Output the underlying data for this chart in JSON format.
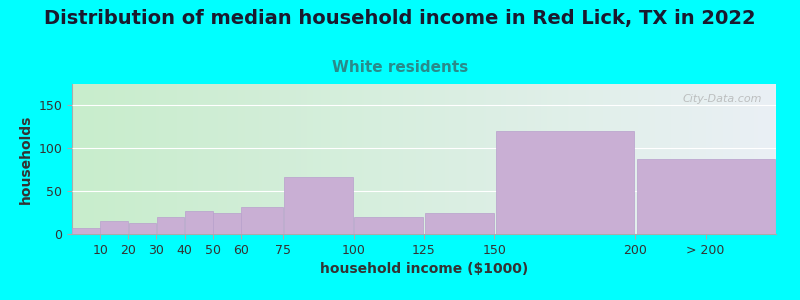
{
  "title": "Distribution of median household income in Red Lick, TX in 2022",
  "subtitle": "White residents",
  "xlabel": "household income ($1000)",
  "ylabel": "households",
  "background_color": "#00FFFF",
  "plot_bg_gradient_left": "#c8edcc",
  "plot_bg_gradient_right": "#eaf0f5",
  "bar_color": "#c9afd4",
  "bar_edge_color": "#b8a0cc",
  "bin_edges": [
    0,
    10,
    20,
    30,
    40,
    50,
    60,
    75,
    100,
    125,
    150,
    200,
    250
  ],
  "bin_labels": [
    "10",
    "20",
    "30",
    "40",
    "50",
    "60",
    "75",
    "100",
    "125",
    "150",
    "200",
    "> 200"
  ],
  "values": [
    7,
    15,
    13,
    20,
    27,
    25,
    32,
    67,
    20,
    25,
    120,
    87
  ],
  "ylim": [
    0,
    175
  ],
  "yticks": [
    0,
    50,
    100,
    150
  ],
  "title_fontsize": 14,
  "subtitle_fontsize": 11,
  "subtitle_color": "#2a8a8a",
  "axis_label_fontsize": 10,
  "tick_fontsize": 9,
  "watermark_text": "City-Data.com",
  "title_color": "#1a1a2e"
}
